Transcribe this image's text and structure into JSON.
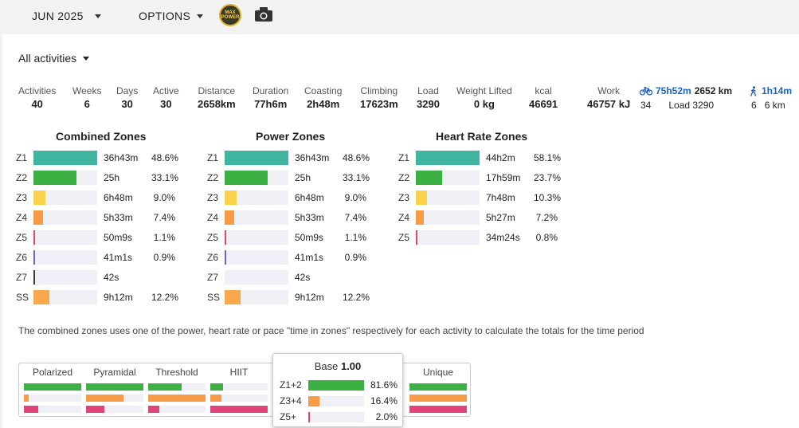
{
  "topbar": {
    "month_label": "JUN 2025",
    "options_label": "OPTIONS",
    "logo_text": "MAX POWER"
  },
  "filter": {
    "label": "All activities"
  },
  "stats": [
    {
      "label": "Activities",
      "value": "40"
    },
    {
      "label": "Weeks",
      "value": "6"
    },
    {
      "label": "Days",
      "value": "30"
    },
    {
      "label": "Active",
      "value": "30"
    },
    {
      "label": "Distance",
      "value": "2658km"
    },
    {
      "label": "Duration",
      "value": "77h6m"
    },
    {
      "label": "Coasting",
      "value": "2h48m"
    },
    {
      "label": "Climbing",
      "value": "17623m"
    },
    {
      "label": "Load",
      "value": "3290"
    },
    {
      "label": "Weight Lifted",
      "value": "0 kg"
    },
    {
      "label": "kcal",
      "value": "46691"
    },
    {
      "label": "Work",
      "value": "46757 kJ"
    }
  ],
  "sports": {
    "ride": {
      "icon": "bike-icon",
      "time": "75h52m",
      "distance": "2652 km",
      "count": "34",
      "load": "Load 3290"
    },
    "walk": {
      "icon": "walk-icon",
      "time": "1h14m",
      "count": "6",
      "distance": "6 km"
    }
  },
  "colors": {
    "z1": "#40b5a0",
    "z2": "#3cb043",
    "z3": "#f8d24a",
    "z4": "#f79b46",
    "z5": "#e0457a",
    "z6": "#7b5ea7",
    "z7": "#3a3a3a",
    "ss": "#f9a94c",
    "accent": "#1a62c6"
  },
  "combined_zones": {
    "title": "Combined Zones",
    "rows": [
      {
        "zone": "Z1",
        "time": "36h43m",
        "pct": "48.6%",
        "fraction": 1.0,
        "color": "#40b5a0"
      },
      {
        "zone": "Z2",
        "time": "25h",
        "pct": "33.1%",
        "fraction": 0.68,
        "color": "#3cb043"
      },
      {
        "zone": "Z3",
        "time": "6h48m",
        "pct": "9.0%",
        "fraction": 0.185,
        "color": "#f8d24a"
      },
      {
        "zone": "Z4",
        "time": "5h33m",
        "pct": "7.4%",
        "fraction": 0.152,
        "color": "#f79b46"
      },
      {
        "zone": "Z5",
        "time": "50m9s",
        "pct": "1.1%",
        "fraction": 0.023,
        "color": "#e0457a"
      },
      {
        "zone": "Z6",
        "time": "41m1s",
        "pct": "0.9%",
        "fraction": 0.019,
        "color": "#7b5ea7"
      },
      {
        "zone": "Z7",
        "time": "42s",
        "pct": "",
        "fraction": 0.004,
        "color": "#3a3a3a"
      },
      {
        "zone": "SS",
        "time": "9h12m",
        "pct": "12.2%",
        "fraction": 0.25,
        "color": "#f9a94c"
      }
    ]
  },
  "power_zones": {
    "title": "Power Zones",
    "rows": [
      {
        "zone": "Z1",
        "time": "36h43m",
        "pct": "48.6%",
        "fraction": 1.0,
        "color": "#40b5a0"
      },
      {
        "zone": "Z2",
        "time": "25h",
        "pct": "33.1%",
        "fraction": 0.68,
        "color": "#3cb043"
      },
      {
        "zone": "Z3",
        "time": "6h48m",
        "pct": "9.0%",
        "fraction": 0.185,
        "color": "#f8d24a"
      },
      {
        "zone": "Z4",
        "time": "5h33m",
        "pct": "7.4%",
        "fraction": 0.152,
        "color": "#f79b46"
      },
      {
        "zone": "Z5",
        "time": "50m9s",
        "pct": "1.1%",
        "fraction": 0.023,
        "color": "#e0457a"
      },
      {
        "zone": "Z6",
        "time": "41m1s",
        "pct": "0.9%",
        "fraction": 0.019,
        "color": "#7b5ea7"
      },
      {
        "zone": "Z7",
        "time": "42s",
        "pct": "",
        "fraction": 0.0,
        "color": "#3a3a3a"
      },
      {
        "zone": "SS",
        "time": "9h12m",
        "pct": "12.2%",
        "fraction": 0.25,
        "color": "#f9a94c"
      }
    ]
  },
  "hr_zones": {
    "title": "Heart Rate Zones",
    "rows": [
      {
        "zone": "Z1",
        "time": "44h2m",
        "pct": "58.1%",
        "fraction": 1.0,
        "color": "#40b5a0"
      },
      {
        "zone": "Z2",
        "time": "17h59m",
        "pct": "23.7%",
        "fraction": 0.41,
        "color": "#3cb043"
      },
      {
        "zone": "Z3",
        "time": "7h48m",
        "pct": "10.3%",
        "fraction": 0.178,
        "color": "#f8d24a"
      },
      {
        "zone": "Z4",
        "time": "5h27m",
        "pct": "7.2%",
        "fraction": 0.124,
        "color": "#f79b46"
      },
      {
        "zone": "Z5",
        "time": "34m24s",
        "pct": "0.8%",
        "fraction": 0.014,
        "color": "#e0457a"
      }
    ]
  },
  "note": "The combined zones uses one of the power, heart rate or pace \"time in zones\" respectively for each activity to calculate the totals for the time period",
  "distribution": {
    "columns": [
      {
        "label": "Polarized",
        "bars": [
          {
            "fraction": 1.0,
            "color": "#3cb043"
          },
          {
            "fraction": 0.08,
            "color": "#f79b46"
          },
          {
            "fraction": 0.25,
            "color": "#e0457a"
          }
        ]
      },
      {
        "label": "Pyramidal",
        "bars": [
          {
            "fraction": 1.0,
            "color": "#3cb043"
          },
          {
            "fraction": 0.65,
            "color": "#f79b46"
          },
          {
            "fraction": 0.32,
            "color": "#e0457a"
          }
        ]
      },
      {
        "label": "Threshold",
        "bars": [
          {
            "fraction": 0.58,
            "color": "#3cb043"
          },
          {
            "fraction": 1.0,
            "color": "#f79b46"
          },
          {
            "fraction": 0.2,
            "color": "#e0457a"
          }
        ]
      },
      {
        "label": "HIIT",
        "bars": [
          {
            "fraction": 0.22,
            "color": "#3cb043"
          },
          {
            "fraction": 0.2,
            "color": "#f79b46"
          },
          {
            "fraction": 1.0,
            "color": "#e0457a"
          }
        ]
      },
      {
        "label": "Unique",
        "bars": [
          {
            "fraction": 1.0,
            "color": "#3cb043"
          },
          {
            "fraction": 1.0,
            "color": "#f79b46"
          },
          {
            "fraction": 1.0,
            "color": "#e0457a"
          }
        ]
      }
    ]
  },
  "tooltip": {
    "title": "Base",
    "score": "1.00",
    "rows": [
      {
        "label": "Z1+2",
        "pct": "81.6%",
        "fraction": 1.0,
        "color": "#3cb043"
      },
      {
        "label": "Z3+4",
        "pct": "16.4%",
        "fraction": 0.2,
        "color": "#f79b46"
      },
      {
        "label": "Z5+",
        "pct": "2.0%",
        "fraction": 0.024,
        "color": "#e0457a"
      }
    ]
  }
}
